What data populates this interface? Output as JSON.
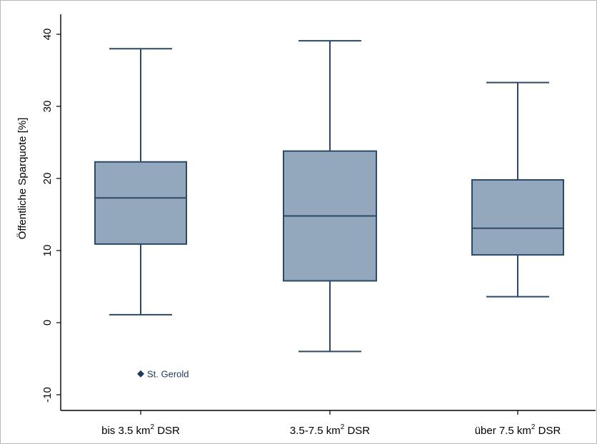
{
  "chart_data": {
    "type": "box",
    "ylabel": "Öffentliche Sparquote [%]",
    "xlabel": "",
    "ylim": [
      -12,
      42
    ],
    "yticks": [
      -10,
      0,
      10,
      20,
      30,
      40
    ],
    "grid": false,
    "categories": [
      {
        "name": "bis 3.5 km",
        "sup": "2",
        "suffix": " DSR"
      },
      {
        "name": "3.5-7.5 km",
        "sup": "2",
        "suffix": " DSR"
      },
      {
        "name": "über 7.5 km",
        "sup": "2",
        "suffix": " DSR"
      }
    ],
    "boxes": [
      {
        "whisker_low": 1.1,
        "q1": 10.9,
        "median": 17.3,
        "q3": 22.3,
        "whisker_high": 38.0,
        "outliers": [
          {
            "value": -7.1,
            "label": "St. Gerold"
          }
        ]
      },
      {
        "whisker_low": -4.0,
        "q1": 5.8,
        "median": 14.8,
        "q3": 23.8,
        "whisker_high": 39.1,
        "outliers": []
      },
      {
        "whisker_low": 3.6,
        "q1": 9.4,
        "median": 13.1,
        "q3": 19.8,
        "whisker_high": 33.3,
        "outliers": []
      }
    ],
    "colors": {
      "fill": "#93a7bd",
      "stroke": "#2b4a68",
      "marker": "#1f3a5a"
    }
  }
}
